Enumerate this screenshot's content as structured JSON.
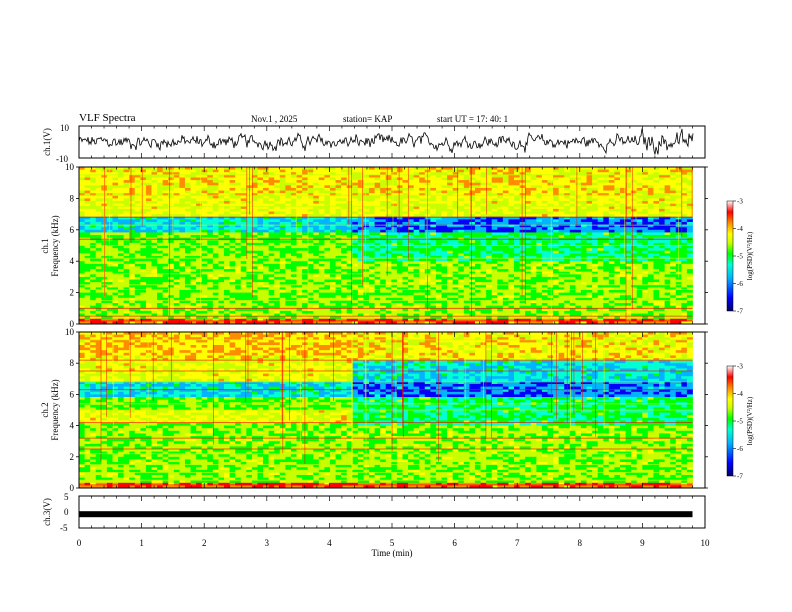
{
  "header": {
    "title": "VLF Spectra",
    "date": "Nov.1  , 2025",
    "station": "station= KAP",
    "start_ut": "start  UT  =   17: 40: 1"
  },
  "colors": {
    "spectrum": [
      "#00006a",
      "#0000ff",
      "#00b4ff",
      "#00ffd2",
      "#00ff00",
      "#c8ff00",
      "#ffff00",
      "#ff8c00",
      "#ff0000",
      "#ffffff"
    ],
    "waveform": "#000000"
  },
  "chart_data": [
    {
      "type": "line",
      "panel": "ch1-waveform",
      "ylabel": "ch.1(V)",
      "ylim": [
        -10,
        10
      ],
      "yticks": [
        "10",
        "-10"
      ],
      "xlim": [
        0,
        10
      ],
      "description_values": {
        "mean": 0,
        "noise_amplitude": 5
      }
    },
    {
      "type": "heatmap",
      "panel": "ch1-spectrogram",
      "ylabel_channel": "ch.1",
      "ylabel": "Frequency (kHz)",
      "ylim": [
        0,
        10
      ],
      "yticks": [
        "0",
        "2",
        "4",
        "6",
        "8",
        "10"
      ],
      "xlim": [
        0,
        10
      ],
      "data_end_min": 9.8,
      "change_time_min": 4.3,
      "colorbar": {
        "label": "log(PSD)(V²/Hz)",
        "range": [
          -7,
          -3
        ],
        "ticks": [
          "-3",
          "-4",
          "-5",
          "-6",
          "-7"
        ]
      }
    },
    {
      "type": "heatmap",
      "panel": "ch2-spectrogram",
      "ylabel_channel": "ch.2",
      "ylabel": "Frequency (kHz)",
      "ylim": [
        0,
        10
      ],
      "yticks": [
        "0",
        "2",
        "4",
        "6",
        "8",
        "10"
      ],
      "xlim": [
        0,
        10
      ],
      "data_end_min": 9.8,
      "change_time_min": 4.3,
      "colorbar": {
        "label": "log(PSD)(V²/Hz)",
        "range": [
          -7,
          -3
        ],
        "ticks": [
          "-3",
          "-4",
          "-5",
          "-6",
          "-7"
        ]
      }
    },
    {
      "type": "line",
      "panel": "ch3-waveform",
      "ylabel": "ch.3(V)",
      "ylim": [
        -5,
        5
      ],
      "yticks": [
        "5",
        "0",
        "-5"
      ],
      "xlim": [
        0,
        10
      ],
      "constant_value": -0.7
    }
  ],
  "xaxis": {
    "label": "Time  (min)",
    "ticks": [
      "0",
      "1",
      "2",
      "3",
      "4",
      "5",
      "6",
      "7",
      "8",
      "9",
      "10"
    ]
  }
}
